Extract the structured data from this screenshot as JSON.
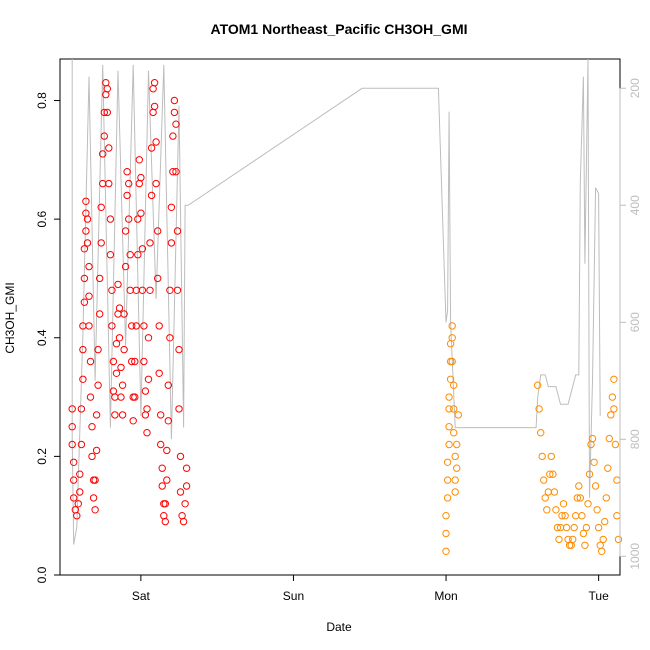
{
  "chart_data": {
    "type": "scatter",
    "title": "ATOM1 Northeast_Pacific CH3OH_GMI",
    "xlabel": "Date",
    "ylabel": "CH3OH_GMI",
    "x_ticks": [
      {
        "label": "Sat",
        "value": 1.0
      },
      {
        "label": "Sun",
        "value": 2.0
      },
      {
        "label": "Mon",
        "value": 3.0
      },
      {
        "label": "Tue",
        "value": 4.0
      }
    ],
    "xlim": [
      0.47,
      4.14
    ],
    "ylim": [
      0.0,
      0.87
    ],
    "y_ticks": [
      0.0,
      0.2,
      0.4,
      0.6,
      0.8
    ],
    "y2_ticks": [
      200,
      400,
      600,
      800,
      1000
    ],
    "y2lim": [
      1032,
      150
    ],
    "colors": {
      "flight1": "#ff0000",
      "flight2": "#ff8c00",
      "pressure": "#bdbdbd"
    },
    "series": [
      {
        "color": "#ff0000",
        "points": [
          [
            0.55,
            0.28
          ],
          [
            0.55,
            0.25
          ],
          [
            0.55,
            0.22
          ],
          [
            0.56,
            0.19
          ],
          [
            0.56,
            0.16
          ],
          [
            0.56,
            0.13
          ],
          [
            0.57,
            0.11
          ],
          [
            0.58,
            0.1
          ],
          [
            0.59,
            0.12
          ],
          [
            0.6,
            0.14
          ],
          [
            0.6,
            0.17
          ],
          [
            0.61,
            0.22
          ],
          [
            0.61,
            0.28
          ],
          [
            0.62,
            0.33
          ],
          [
            0.62,
            0.38
          ],
          [
            0.62,
            0.42
          ],
          [
            0.63,
            0.46
          ],
          [
            0.63,
            0.5
          ],
          [
            0.63,
            0.55
          ],
          [
            0.64,
            0.58
          ],
          [
            0.64,
            0.61
          ],
          [
            0.64,
            0.63
          ],
          [
            0.65,
            0.6
          ],
          [
            0.65,
            0.56
          ],
          [
            0.66,
            0.52
          ],
          [
            0.66,
            0.47
          ],
          [
            0.66,
            0.42
          ],
          [
            0.67,
            0.36
          ],
          [
            0.67,
            0.3
          ],
          [
            0.68,
            0.25
          ],
          [
            0.68,
            0.2
          ],
          [
            0.69,
            0.16
          ],
          [
            0.69,
            0.13
          ],
          [
            0.7,
            0.11
          ],
          [
            0.7,
            0.16
          ],
          [
            0.71,
            0.21
          ],
          [
            0.71,
            0.27
          ],
          [
            0.72,
            0.32
          ],
          [
            0.72,
            0.38
          ],
          [
            0.73,
            0.44
          ],
          [
            0.73,
            0.5
          ],
          [
            0.74,
            0.56
          ],
          [
            0.74,
            0.62
          ],
          [
            0.75,
            0.66
          ],
          [
            0.75,
            0.71
          ],
          [
            0.76,
            0.74
          ],
          [
            0.76,
            0.78
          ],
          [
            0.77,
            0.81
          ],
          [
            0.77,
            0.83
          ],
          [
            0.78,
            0.82
          ],
          [
            0.78,
            0.78
          ],
          [
            0.79,
            0.72
          ],
          [
            0.79,
            0.66
          ],
          [
            0.8,
            0.6
          ],
          [
            0.8,
            0.54
          ],
          [
            0.81,
            0.48
          ],
          [
            0.81,
            0.42
          ],
          [
            0.82,
            0.36
          ],
          [
            0.82,
            0.31
          ],
          [
            0.83,
            0.27
          ],
          [
            0.83,
            0.3
          ],
          [
            0.84,
            0.34
          ],
          [
            0.84,
            0.39
          ],
          [
            0.85,
            0.44
          ],
          [
            0.85,
            0.49
          ],
          [
            0.86,
            0.45
          ],
          [
            0.86,
            0.4
          ],
          [
            0.87,
            0.35
          ],
          [
            0.87,
            0.3
          ],
          [
            0.88,
            0.27
          ],
          [
            0.88,
            0.32
          ],
          [
            0.89,
            0.38
          ],
          [
            0.89,
            0.44
          ],
          [
            0.9,
            0.52
          ],
          [
            0.9,
            0.58
          ],
          [
            0.91,
            0.64
          ],
          [
            0.91,
            0.68
          ],
          [
            0.92,
            0.66
          ],
          [
            0.92,
            0.6
          ],
          [
            0.93,
            0.54
          ],
          [
            0.93,
            0.48
          ],
          [
            0.94,
            0.42
          ],
          [
            0.94,
            0.36
          ],
          [
            0.95,
            0.3
          ],
          [
            0.95,
            0.26
          ],
          [
            0.96,
            0.3
          ],
          [
            0.96,
            0.36
          ],
          [
            0.97,
            0.42
          ],
          [
            0.97,
            0.48
          ],
          [
            0.98,
            0.54
          ],
          [
            0.98,
            0.6
          ],
          [
            0.99,
            0.66
          ],
          [
            0.99,
            0.7
          ],
          [
            1.0,
            0.67
          ],
          [
            1.0,
            0.61
          ],
          [
            1.01,
            0.55
          ],
          [
            1.01,
            0.48
          ],
          [
            1.02,
            0.42
          ],
          [
            1.02,
            0.36
          ],
          [
            1.03,
            0.31
          ],
          [
            1.03,
            0.27
          ],
          [
            1.04,
            0.24
          ],
          [
            1.04,
            0.28
          ],
          [
            1.05,
            0.33
          ],
          [
            1.05,
            0.4
          ],
          [
            1.06,
            0.48
          ],
          [
            1.06,
            0.56
          ],
          [
            1.07,
            0.64
          ],
          [
            1.07,
            0.72
          ],
          [
            1.08,
            0.78
          ],
          [
            1.08,
            0.82
          ],
          [
            1.09,
            0.83
          ],
          [
            1.09,
            0.79
          ],
          [
            1.1,
            0.73
          ],
          [
            1.1,
            0.66
          ],
          [
            1.11,
            0.58
          ],
          [
            1.11,
            0.5
          ],
          [
            1.12,
            0.42
          ],
          [
            1.12,
            0.34
          ],
          [
            1.13,
            0.27
          ],
          [
            1.13,
            0.22
          ],
          [
            1.14,
            0.18
          ],
          [
            1.14,
            0.15
          ],
          [
            1.15,
            0.12
          ],
          [
            1.15,
            0.1
          ],
          [
            1.16,
            0.09
          ],
          [
            1.16,
            0.12
          ],
          [
            1.17,
            0.16
          ],
          [
            1.17,
            0.21
          ],
          [
            1.18,
            0.26
          ],
          [
            1.18,
            0.32
          ],
          [
            1.19,
            0.4
          ],
          [
            1.19,
            0.48
          ],
          [
            1.2,
            0.56
          ],
          [
            1.2,
            0.62
          ],
          [
            1.21,
            0.68
          ],
          [
            1.21,
            0.74
          ],
          [
            1.22,
            0.78
          ],
          [
            1.22,
            0.8
          ],
          [
            1.23,
            0.76
          ],
          [
            1.23,
            0.68
          ],
          [
            1.24,
            0.58
          ],
          [
            1.24,
            0.48
          ],
          [
            1.25,
            0.38
          ],
          [
            1.25,
            0.28
          ],
          [
            1.26,
            0.2
          ],
          [
            1.26,
            0.14
          ],
          [
            1.27,
            0.1
          ],
          [
            1.28,
            0.09
          ],
          [
            1.29,
            0.12
          ],
          [
            1.3,
            0.15
          ],
          [
            1.3,
            0.18
          ]
        ]
      },
      {
        "color": "#ff8c00",
        "points": [
          [
            3.0,
            0.04
          ],
          [
            3.0,
            0.07
          ],
          [
            3.0,
            0.1
          ],
          [
            3.01,
            0.13
          ],
          [
            3.01,
            0.16
          ],
          [
            3.01,
            0.19
          ],
          [
            3.02,
            0.22
          ],
          [
            3.02,
            0.25
          ],
          [
            3.02,
            0.28
          ],
          [
            3.02,
            0.3
          ],
          [
            3.03,
            0.33
          ],
          [
            3.03,
            0.36
          ],
          [
            3.03,
            0.39
          ],
          [
            3.04,
            0.42
          ],
          [
            3.04,
            0.4
          ],
          [
            3.04,
            0.36
          ],
          [
            3.05,
            0.32
          ],
          [
            3.05,
            0.28
          ],
          [
            3.05,
            0.24
          ],
          [
            3.06,
            0.2
          ],
          [
            3.06,
            0.16
          ],
          [
            3.06,
            0.14
          ],
          [
            3.07,
            0.18
          ],
          [
            3.07,
            0.22
          ],
          [
            3.08,
            0.27
          ],
          [
            3.6,
            0.32
          ],
          [
            3.61,
            0.28
          ],
          [
            3.62,
            0.24
          ],
          [
            3.63,
            0.2
          ],
          [
            3.64,
            0.16
          ],
          [
            3.65,
            0.13
          ],
          [
            3.66,
            0.11
          ],
          [
            3.67,
            0.14
          ],
          [
            3.68,
            0.17
          ],
          [
            3.69,
            0.2
          ],
          [
            3.7,
            0.17
          ],
          [
            3.71,
            0.14
          ],
          [
            3.72,
            0.11
          ],
          [
            3.73,
            0.08
          ],
          [
            3.74,
            0.06
          ],
          [
            3.75,
            0.08
          ],
          [
            3.76,
            0.1
          ],
          [
            3.77,
            0.12
          ],
          [
            3.78,
            0.1
          ],
          [
            3.79,
            0.08
          ],
          [
            3.8,
            0.06
          ],
          [
            3.81,
            0.05
          ],
          [
            3.82,
            0.05
          ],
          [
            3.83,
            0.06
          ],
          [
            3.84,
            0.08
          ],
          [
            3.85,
            0.1
          ],
          [
            3.86,
            0.13
          ],
          [
            3.87,
            0.15
          ],
          [
            3.88,
            0.13
          ],
          [
            3.89,
            0.1
          ],
          [
            3.9,
            0.07
          ],
          [
            3.91,
            0.05
          ],
          [
            3.92,
            0.08
          ],
          [
            3.93,
            0.12
          ],
          [
            3.94,
            0.17
          ],
          [
            3.95,
            0.22
          ],
          [
            3.96,
            0.23
          ],
          [
            3.97,
            0.19
          ],
          [
            3.98,
            0.15
          ],
          [
            3.99,
            0.11
          ],
          [
            4.0,
            0.08
          ],
          [
            4.01,
            0.05
          ],
          [
            4.02,
            0.04
          ],
          [
            4.03,
            0.06
          ],
          [
            4.04,
            0.09
          ],
          [
            4.05,
            0.13
          ],
          [
            4.06,
            0.18
          ],
          [
            4.07,
            0.23
          ],
          [
            4.08,
            0.27
          ],
          [
            4.09,
            0.3
          ],
          [
            4.1,
            0.33
          ],
          [
            4.1,
            0.28
          ],
          [
            4.11,
            0.22
          ],
          [
            4.12,
            0.16
          ],
          [
            4.12,
            0.1
          ],
          [
            4.13,
            0.06
          ]
        ]
      }
    ],
    "pressure_line": [
      [
        0.55,
        150
      ],
      [
        0.55,
        800
      ],
      [
        0.56,
        980
      ],
      [
        0.58,
        950
      ],
      [
        0.62,
        620
      ],
      [
        0.66,
        180
      ],
      [
        0.7,
        700
      ],
      [
        0.75,
        160
      ],
      [
        0.8,
        780
      ],
      [
        0.85,
        170
      ],
      [
        0.9,
        640
      ],
      [
        0.95,
        160
      ],
      [
        1.0,
        760
      ],
      [
        1.05,
        170
      ],
      [
        1.1,
        560
      ],
      [
        1.15,
        160
      ],
      [
        1.2,
        800
      ],
      [
        1.25,
        230
      ],
      [
        1.28,
        780
      ],
      [
        1.29,
        400
      ],
      [
        1.31,
        400
      ],
      [
        2.45,
        200
      ],
      [
        2.95,
        200
      ],
      [
        3.0,
        600
      ],
      [
        3.01,
        580
      ],
      [
        3.02,
        240
      ],
      [
        3.03,
        600
      ],
      [
        3.06,
        780
      ],
      [
        3.5,
        780
      ],
      [
        3.55,
        780
      ],
      [
        3.57,
        780
      ],
      [
        3.59,
        780
      ],
      [
        3.6,
        730
      ],
      [
        3.62,
        690
      ],
      [
        3.65,
        690
      ],
      [
        3.67,
        710
      ],
      [
        3.72,
        710
      ],
      [
        3.75,
        740
      ],
      [
        3.8,
        740
      ],
      [
        3.85,
        690
      ],
      [
        3.87,
        690
      ],
      [
        3.88,
        360
      ],
      [
        3.9,
        180
      ],
      [
        3.91,
        500
      ],
      [
        3.93,
        150
      ],
      [
        3.94,
        900
      ],
      [
        3.96,
        700
      ],
      [
        3.98,
        370
      ],
      [
        4.0,
        380
      ],
      [
        4.01,
        760
      ]
    ]
  }
}
